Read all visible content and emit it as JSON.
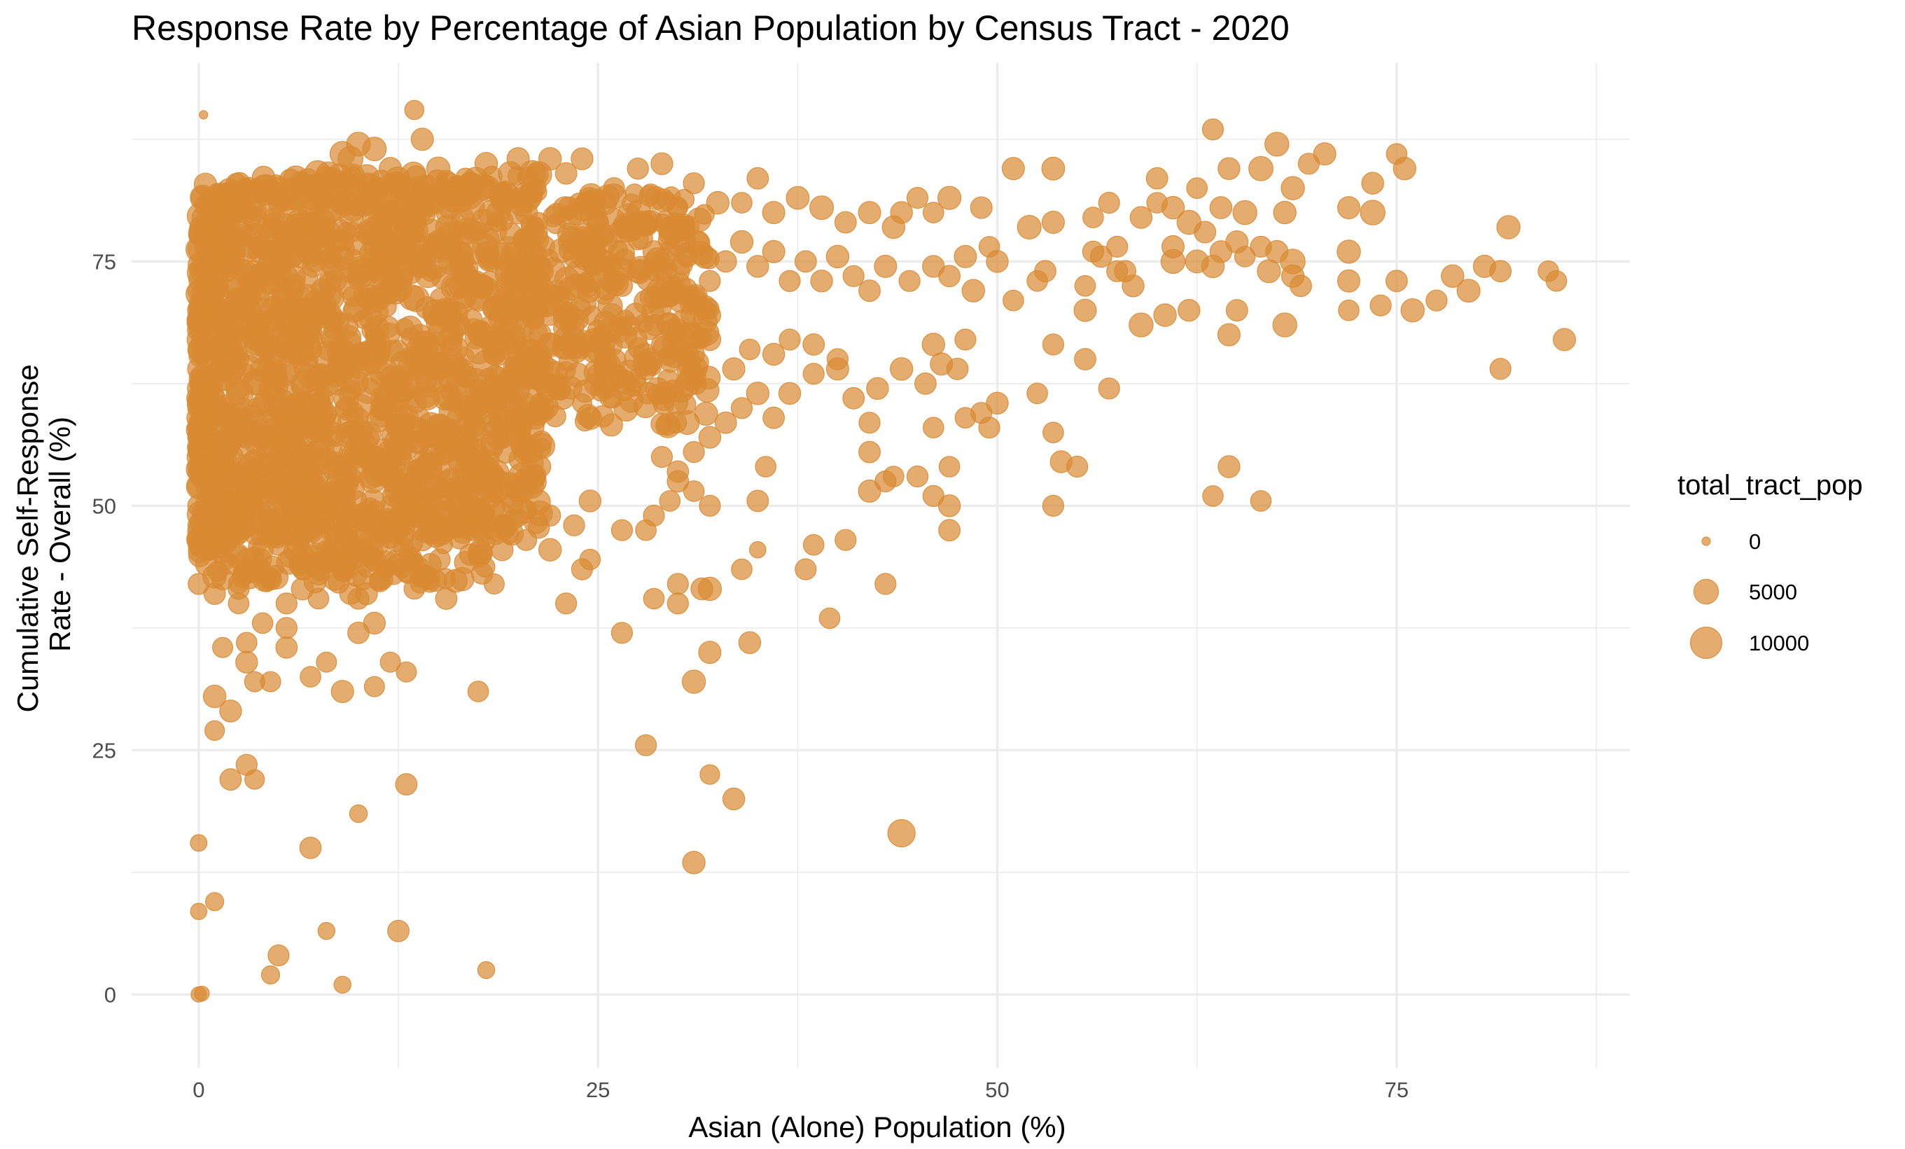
{
  "chart_data": {
    "type": "scatter",
    "title": "Response Rate by Percentage of Asian Population by Census Tract - 2020",
    "xlabel": "Asian (Alone) Population (%)",
    "ylabel_lines": [
      "Cumulative Self-Response",
      "Rate - Overall (%)"
    ],
    "xlim": [
      -4.2,
      89.6
    ],
    "ylim": [
      -7.5,
      95.3
    ],
    "x_ticks": [
      0,
      25,
      50,
      75
    ],
    "x_tick_labels": [
      "0",
      "25",
      "50",
      "75"
    ],
    "y_ticks": [
      0,
      25,
      50,
      75
    ],
    "y_tick_labels": [
      "0",
      "25",
      "50",
      "75"
    ],
    "x_minor": [
      12.5,
      37.5,
      62.5,
      87.5
    ],
    "y_minor": [
      12.5,
      37.5,
      62.5,
      87.5
    ],
    "grid": true,
    "point_color": "#D98A32",
    "point_alpha": 0.7,
    "legend": {
      "title": "total_tract_pop",
      "position": "right",
      "entries": [
        {
          "label": "0",
          "value": 0
        },
        {
          "label": "5000",
          "value": 5000
        },
        {
          "label": "10000",
          "value": 10000
        }
      ]
    },
    "size_scale": {
      "min_pop": 0,
      "max_pop": 12000
    },
    "cluster_summary": {
      "note": "dense cloud of tracts between 0 and 22% Asian with response rates 40-88%"
    },
    "points": [
      [
        13.5,
        90.5,
        2200
      ],
      [
        63.5,
        88.5,
        3000
      ],
      [
        67.5,
        87,
        4600
      ],
      [
        70.5,
        86,
        3600
      ],
      [
        75,
        86,
        2800
      ],
      [
        75.5,
        84.5,
        3800
      ],
      [
        69.5,
        85,
        3000
      ],
      [
        66.5,
        84.5,
        4700
      ],
      [
        64.5,
        84.5,
        3400
      ],
      [
        60,
        83.5,
        3200
      ],
      [
        62.5,
        82.5,
        2800
      ],
      [
        51,
        84.5,
        3600
      ],
      [
        53.5,
        84.5,
        3900
      ],
      [
        73.5,
        83,
        3400
      ],
      [
        73.5,
        80,
        5000
      ],
      [
        72,
        80.5,
        3600
      ],
      [
        68.5,
        82.5,
        4200
      ],
      [
        68,
        80,
        3800
      ],
      [
        65.5,
        80,
        4600
      ],
      [
        64,
        80.5,
        3500
      ],
      [
        62,
        79,
        4600
      ],
      [
        61,
        80.5,
        3800
      ],
      [
        59,
        79.5,
        3400
      ],
      [
        57,
        81,
        3000
      ],
      [
        56,
        79.5,
        2800
      ],
      [
        53.5,
        79,
        3600
      ],
      [
        52,
        78.5,
        4400
      ],
      [
        49,
        80.5,
        3300
      ],
      [
        47,
        81.5,
        4100
      ],
      [
        46,
        80,
        2800
      ],
      [
        45,
        81.5,
        3000
      ],
      [
        44,
        80,
        3400
      ],
      [
        43.5,
        78.5,
        3800
      ],
      [
        42,
        80,
        3600
      ],
      [
        40.5,
        79,
        3200
      ],
      [
        39,
        80.5,
        4400
      ],
      [
        37.5,
        81.5,
        3900
      ],
      [
        36,
        80,
        3600
      ],
      [
        35,
        83.5,
        3200
      ],
      [
        34,
        81,
        2800
      ],
      [
        32.5,
        81,
        3800
      ],
      [
        31,
        83,
        3000
      ],
      [
        29,
        85,
        3400
      ],
      [
        27.5,
        84.5,
        3100
      ],
      [
        26,
        82.5,
        3000
      ],
      [
        61,
        75,
        4600
      ],
      [
        61,
        76.5,
        3600
      ],
      [
        62.5,
        75,
        4000
      ],
      [
        63.5,
        74.5,
        3800
      ],
      [
        64,
        76,
        3400
      ],
      [
        65.5,
        75.5,
        2800
      ],
      [
        67.5,
        76,
        3600
      ],
      [
        68.5,
        75,
        5000
      ],
      [
        68.5,
        73.5,
        3800
      ],
      [
        69,
        72.5,
        3200
      ],
      [
        67,
        74,
        4100
      ],
      [
        66.5,
        76.5,
        3000
      ],
      [
        72,
        76,
        4200
      ],
      [
        72,
        73,
        3600
      ],
      [
        72,
        70,
        2800
      ],
      [
        74,
        70.5,
        3000
      ],
      [
        75,
        73,
        3200
      ],
      [
        76,
        70,
        4200
      ],
      [
        77.5,
        71,
        3000
      ],
      [
        78.5,
        73.5,
        3800
      ],
      [
        79.5,
        72,
        4000
      ],
      [
        80.5,
        74.5,
        3600
      ],
      [
        81.5,
        74,
        3200
      ],
      [
        84.5,
        74,
        2800
      ],
      [
        85,
        73,
        2800
      ],
      [
        82,
        78.5,
        4200
      ],
      [
        85.5,
        67,
        3600
      ],
      [
        81.5,
        64,
        3000
      ],
      [
        68,
        68.5,
        4600
      ],
      [
        65,
        70,
        3200
      ],
      [
        64.5,
        67.5,
        3600
      ],
      [
        62,
        70,
        3400
      ],
      [
        60.5,
        69.5,
        3800
      ],
      [
        59,
        68.5,
        4600
      ],
      [
        58.5,
        72.5,
        3400
      ],
      [
        57.5,
        74,
        3000
      ],
      [
        56.5,
        75.5,
        3200
      ],
      [
        55.5,
        72.5,
        2800
      ],
      [
        55.5,
        70,
        3600
      ],
      [
        56,
        76,
        3000
      ],
      [
        53,
        74,
        3200
      ],
      [
        52.5,
        73,
        2800
      ],
      [
        51,
        71,
        2800
      ],
      [
        50,
        75,
        3400
      ],
      [
        49.5,
        76.5,
        2800
      ],
      [
        48,
        75.5,
        3600
      ],
      [
        48.5,
        72,
        3800
      ],
      [
        47,
        73.5,
        3200
      ],
      [
        46,
        74.5,
        3400
      ],
      [
        44.5,
        73,
        3000
      ],
      [
        43,
        74.5,
        3600
      ],
      [
        42,
        72,
        3200
      ],
      [
        41,
        73.5,
        3000
      ],
      [
        40,
        75.5,
        3800
      ],
      [
        39,
        73,
        3400
      ],
      [
        38,
        75,
        3200
      ],
      [
        37,
        73,
        3000
      ],
      [
        36,
        76,
        3600
      ],
      [
        35,
        74.5,
        3400
      ],
      [
        34,
        77,
        3800
      ],
      [
        33,
        75,
        3200
      ],
      [
        32,
        73,
        3000
      ],
      [
        31,
        71,
        3800
      ],
      [
        30,
        74,
        4200
      ],
      [
        29,
        72,
        3000
      ],
      [
        28.5,
        76,
        3400
      ],
      [
        27.5,
        74,
        3800
      ],
      [
        26.5,
        72.5,
        3000
      ],
      [
        25.5,
        75,
        3200
      ],
      [
        24.5,
        73,
        3600
      ],
      [
        23.5,
        75.5,
        3400
      ],
      [
        22.5,
        72,
        3000
      ],
      [
        21.5,
        74,
        3800
      ],
      [
        60,
        81,
        2800
      ],
      [
        65,
        77,
        3600
      ],
      [
        63,
        78,
        3300
      ],
      [
        58,
        74,
        3200
      ],
      [
        57.5,
        76.5,
        3000
      ],
      [
        53.5,
        66.5,
        3000
      ],
      [
        55.5,
        65,
        3200
      ],
      [
        57,
        62,
        3000
      ],
      [
        52.5,
        61.5,
        2800
      ],
      [
        50,
        60.5,
        3400
      ],
      [
        49,
        59.5,
        3000
      ],
      [
        48,
        59,
        2800
      ],
      [
        49.5,
        58,
        3000
      ],
      [
        46,
        58,
        2800
      ],
      [
        46.5,
        64.5,
        3600
      ],
      [
        46,
        66.5,
        3800
      ],
      [
        47.5,
        64,
        3200
      ],
      [
        48,
        67,
        3000
      ],
      [
        45.5,
        62.5,
        3200
      ],
      [
        44,
        64,
        3800
      ],
      [
        42.5,
        62,
        3400
      ],
      [
        42,
        58.5,
        3000
      ],
      [
        41,
        61,
        3200
      ],
      [
        40,
        64,
        3600
      ],
      [
        40,
        65,
        3000
      ],
      [
        38.5,
        63.5,
        3000
      ],
      [
        37,
        61.5,
        3400
      ],
      [
        36,
        59,
        3200
      ],
      [
        35,
        61.5,
        3800
      ],
      [
        34,
        60,
        3000
      ],
      [
        33,
        58.5,
        3200
      ],
      [
        32,
        57,
        3400
      ],
      [
        31,
        55.5,
        3000
      ],
      [
        30,
        53.5,
        3200
      ],
      [
        29,
        55,
        3000
      ],
      [
        38.5,
        66.5,
        3200
      ],
      [
        37,
        67,
        3000
      ],
      [
        36,
        65.5,
        3400
      ],
      [
        34.5,
        66,
        2800
      ],
      [
        33.5,
        64,
        3600
      ],
      [
        32,
        67,
        3400
      ],
      [
        31,
        65.5,
        3000
      ],
      [
        30,
        68,
        3200
      ],
      [
        29,
        66.5,
        2800
      ],
      [
        28,
        64,
        3400
      ],
      [
        47,
        47.5,
        3200
      ],
      [
        47,
        50,
        3400
      ],
      [
        46,
        51,
        3000
      ],
      [
        45,
        53,
        3000
      ],
      [
        47,
        54,
        2800
      ],
      [
        42,
        55.5,
        3200
      ],
      [
        42,
        51.5,
        3600
      ],
      [
        43,
        52.5,
        3000
      ],
      [
        43.5,
        53,
        2800
      ],
      [
        40.5,
        46.5,
        3000
      ],
      [
        38.5,
        46,
        2800
      ],
      [
        38,
        43.5,
        3000
      ],
      [
        39.5,
        38.5,
        2800
      ],
      [
        43,
        42,
        3000
      ],
      [
        35.5,
        54,
        2800
      ],
      [
        35,
        50.5,
        3200
      ],
      [
        35,
        45.5,
        1200
      ],
      [
        34,
        43.5,
        2800
      ],
      [
        32,
        50,
        3000
      ],
      [
        31,
        51.5,
        2800
      ],
      [
        30,
        52.5,
        3200
      ],
      [
        29.5,
        50.5,
        2800
      ],
      [
        28.5,
        49,
        3000
      ],
      [
        28,
        47.5,
        2800
      ],
      [
        30,
        42,
        3000
      ],
      [
        30,
        40,
        3000
      ],
      [
        28.5,
        40.5,
        2800
      ],
      [
        32,
        41.5,
        4200
      ],
      [
        31.5,
        41.5,
        3400
      ],
      [
        26.5,
        47.5,
        3000
      ],
      [
        24.5,
        50.5,
        3400
      ],
      [
        23.5,
        48,
        3000
      ],
      [
        22,
        49,
        3000
      ],
      [
        22,
        45.5,
        3800
      ],
      [
        24.5,
        44.5,
        2800
      ],
      [
        24,
        43.5,
        3000
      ],
      [
        23,
        40,
        3000
      ],
      [
        26.5,
        37,
        3000
      ],
      [
        32,
        35,
        3600
      ],
      [
        34.5,
        36,
        3400
      ],
      [
        31,
        32,
        4200
      ],
      [
        28,
        25.5,
        3000
      ],
      [
        32,
        22.5,
        2400
      ],
      [
        33.5,
        20,
        3400
      ],
      [
        31,
        13.5,
        3800
      ],
      [
        44,
        16.5,
        6800
      ],
      [
        53.5,
        57.5,
        2800
      ],
      [
        54,
        54.5,
        3400
      ],
      [
        55,
        54,
        3000
      ],
      [
        53.5,
        50,
        3000
      ],
      [
        64.5,
        54,
        3400
      ],
      [
        63.5,
        51,
        2800
      ],
      [
        66.5,
        50.5,
        2800
      ],
      [
        18.5,
        42,
        2600
      ],
      [
        17.5,
        31,
        2800
      ],
      [
        13,
        33,
        2600
      ],
      [
        12,
        34,
        2600
      ],
      [
        11,
        31.5,
        2600
      ],
      [
        10,
        37,
        3200
      ],
      [
        11,
        38,
        3400
      ],
      [
        9,
        31,
        3600
      ],
      [
        8,
        34,
        2600
      ],
      [
        7,
        32.5,
        2800
      ],
      [
        5.5,
        35.5,
        3200
      ],
      [
        4.5,
        32,
        2600
      ],
      [
        3.5,
        32,
        2600
      ],
      [
        3,
        34,
        3400
      ],
      [
        3,
        36,
        2800
      ],
      [
        3,
        23.5,
        3000
      ],
      [
        3.5,
        22,
        2400
      ],
      [
        2,
        22,
        3200
      ],
      [
        2,
        29,
        3400
      ],
      [
        1,
        30.5,
        3800
      ],
      [
        1,
        27,
        2400
      ],
      [
        1.5,
        35.5,
        2600
      ],
      [
        13,
        21.5,
        3200
      ],
      [
        10,
        18.5,
        1600
      ],
      [
        7,
        15,
        3200
      ],
      [
        12.5,
        6.5,
        3200
      ],
      [
        8,
        6.5,
        1400
      ],
      [
        5,
        4,
        3000
      ],
      [
        4.5,
        2,
        1800
      ],
      [
        9,
        1,
        1400
      ],
      [
        18,
        2.5,
        1400
      ],
      [
        0,
        15.5,
        1300
      ],
      [
        0,
        8.5,
        1200
      ],
      [
        1,
        9.5,
        1800
      ],
      [
        0,
        0,
        900
      ],
      [
        0.2,
        0.1,
        800
      ],
      [
        0,
        42,
        3000
      ],
      [
        0.5,
        44,
        3600
      ],
      [
        1,
        41,
        3200
      ],
      [
        1.5,
        42.5,
        3400
      ],
      [
        2.5,
        41.5,
        3000
      ],
      [
        3,
        44.5,
        3200
      ],
      [
        4.5,
        42.5,
        3400
      ],
      [
        5.5,
        40,
        3000
      ],
      [
        6.5,
        41.5,
        3600
      ],
      [
        7.5,
        43,
        3200
      ],
      [
        8.5,
        42.5,
        3800
      ],
      [
        9.5,
        41,
        3200
      ],
      [
        10.5,
        41,
        3400
      ],
      [
        11.5,
        42.5,
        3000
      ],
      [
        12.5,
        44,
        3200
      ],
      [
        13.5,
        41.5,
        2800
      ],
      [
        14.5,
        44,
        3400
      ],
      [
        15.5,
        40.5,
        3200
      ],
      [
        16.5,
        42.5,
        4200
      ],
      [
        17,
        45,
        3200
      ],
      [
        18.5,
        47.5,
        3000
      ],
      [
        19,
        45.5,
        3400
      ],
      [
        20.5,
        46.5,
        3000
      ],
      [
        15.5,
        47.5,
        3200
      ],
      [
        14,
        46.5,
        3400
      ],
      [
        12.5,
        47.5,
        3000
      ],
      [
        11,
        44.5,
        3600
      ],
      [
        9.5,
        45,
        3800
      ],
      [
        7.5,
        44,
        3400
      ],
      [
        6.5,
        45,
        3600
      ],
      [
        5,
        46,
        3000
      ],
      [
        4,
        45.5,
        3200
      ],
      [
        2.5,
        45,
        3000
      ],
      [
        1.5,
        46.5,
        3400
      ],
      [
        0.5,
        47,
        3600
      ],
      [
        5.5,
        37.5,
        3000
      ],
      [
        7.5,
        40.5,
        2800
      ],
      [
        10,
        40.5,
        3000
      ],
      [
        2.5,
        40,
        2800
      ],
      [
        4,
        38,
        2800
      ],
      [
        0.3,
        90,
        0
      ],
      [
        14,
        87.5,
        3600
      ],
      [
        10,
        87,
        4600
      ],
      [
        9,
        86,
        5200
      ],
      [
        11,
        86.5,
        4400
      ],
      [
        9.5,
        85.5,
        5200
      ],
      [
        12,
        84.5,
        3600
      ],
      [
        15,
        84.5,
        4200
      ],
      [
        18,
        85,
        3800
      ],
      [
        20,
        85.5,
        3600
      ],
      [
        22,
        85.5,
        3800
      ],
      [
        24,
        85.5,
        3400
      ],
      [
        23,
        84,
        3200
      ],
      [
        19,
        82,
        3400
      ],
      [
        17,
        83,
        3800
      ],
      [
        16,
        81.5,
        4000
      ],
      [
        13,
        82,
        3800
      ],
      [
        10.5,
        81,
        4200
      ],
      [
        8,
        82,
        3600
      ],
      [
        6,
        82.5,
        3400
      ],
      [
        5,
        81,
        3000
      ],
      [
        3,
        80,
        3200
      ],
      [
        2,
        77.5,
        3400
      ],
      [
        1,
        76,
        3200
      ],
      [
        0.5,
        74,
        3400
      ],
      [
        0,
        72,
        3400
      ],
      [
        0,
        70,
        3600
      ],
      [
        0,
        68,
        3800
      ],
      [
        0,
        66,
        3400
      ],
      [
        0,
        64,
        3600
      ],
      [
        0,
        62,
        3800
      ],
      [
        0,
        60,
        3400
      ],
      [
        0,
        58,
        3600
      ],
      [
        0,
        56,
        3800
      ],
      [
        0,
        54,
        3400
      ],
      [
        0,
        52,
        3600
      ],
      [
        0,
        50,
        3400
      ],
      [
        0,
        48,
        3200
      ],
      [
        0,
        46,
        3000
      ],
      [
        0,
        59,
        4400
      ],
      [
        0,
        55,
        4200
      ],
      [
        0,
        61,
        4600
      ],
      [
        0,
        67,
        4200
      ]
    ]
  }
}
